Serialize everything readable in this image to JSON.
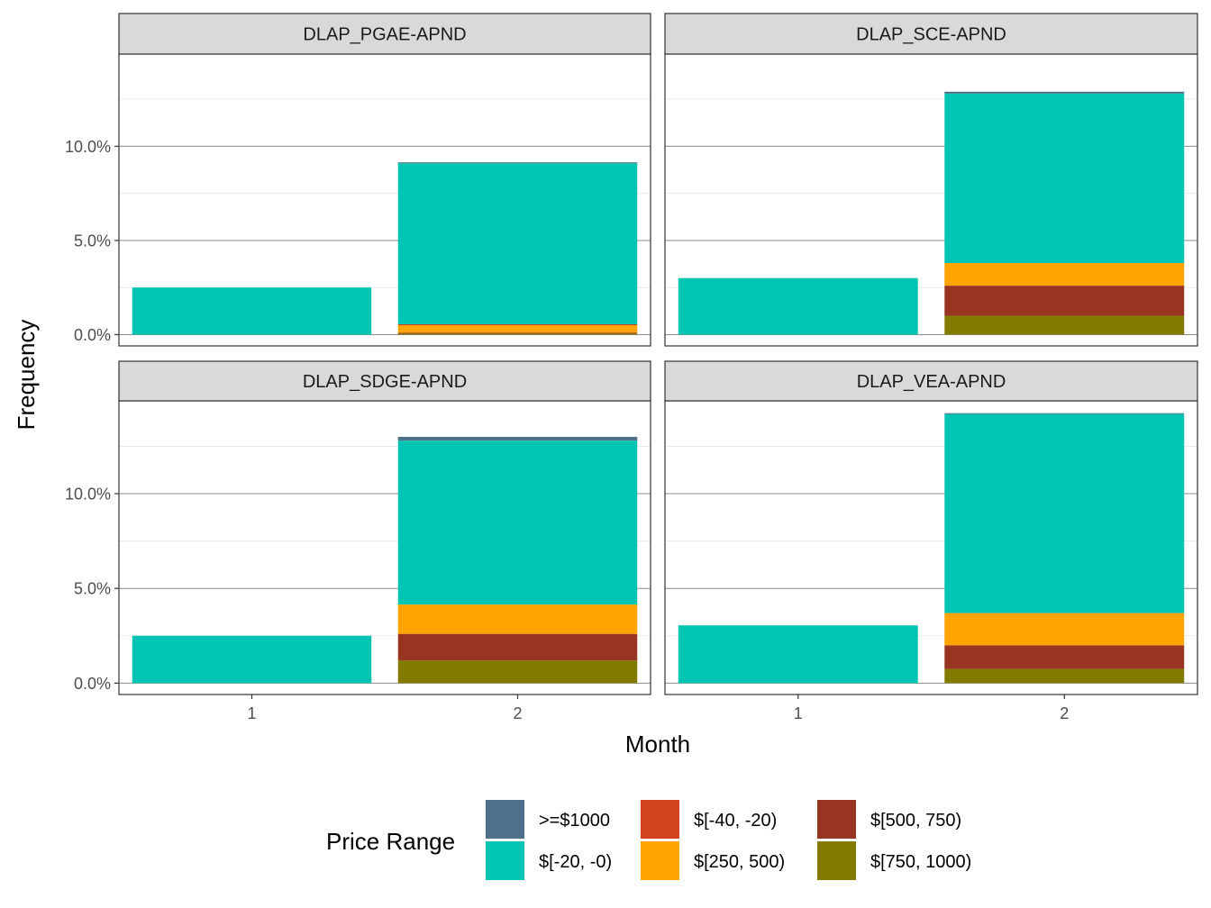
{
  "chart_data": {
    "type": "bar",
    "stacked": true,
    "xlabel": "Month",
    "ylabel": "Frequency",
    "x_categories": [
      "1",
      "2"
    ],
    "y_ticks": [
      "0.0%",
      "5.0%",
      "10.0%"
    ],
    "y_tick_values": [
      0,
      5,
      10
    ],
    "ylim": [
      -0.6,
      14.9
    ],
    "grid": true,
    "legend": {
      "title": "Price Range",
      "position": "bottom",
      "items": [
        {
          "label": ">=$1000",
          "color": "#4e7189"
        },
        {
          "label": "$[-20, -0)",
          "color": "#00c5b2"
        },
        {
          "label": "$[-40, -20)",
          "color": "#d1431f"
        },
        {
          "label": "$[250, 500)",
          "color": "#ffa400"
        },
        {
          "label": "$[500, 750)",
          "color": "#973522"
        },
        {
          "label": "$[750, 1000)",
          "color": "#837b00"
        }
      ]
    },
    "stack_order_bottom_to_top": [
      "$[750, 1000)",
      "$[500, 750)",
      "$[250, 500)",
      "$[-40, -20)",
      "$[-20, -0)",
      ">=$1000"
    ],
    "panels": [
      {
        "name": "DLAP_PGAE-APND",
        "bars": [
          {
            "month": "1",
            "segments": {
              "$[-20, -0)": 2.5
            }
          },
          {
            "month": "2",
            "segments": {
              "$[750, 1000)": 0.05,
              "$[500, 750)": 0.05,
              "$[250, 500)": 0.4,
              "$[-40, -20)": 0.05,
              "$[-20, -0)": 8.55,
              ">=$1000": 0.05
            }
          }
        ]
      },
      {
        "name": "DLAP_SCE-APND",
        "bars": [
          {
            "month": "1",
            "segments": {
              "$[-20, -0)": 3.0
            }
          },
          {
            "month": "2",
            "segments": {
              "$[750, 1000)": 1.0,
              "$[500, 750)": 1.6,
              "$[250, 500)": 1.2,
              "$[-20, -0)": 9.0,
              ">=$1000": 0.1
            }
          }
        ]
      },
      {
        "name": "DLAP_SDGE-APND",
        "bars": [
          {
            "month": "1",
            "segments": {
              "$[-20, -0)": 2.5
            }
          },
          {
            "month": "2",
            "segments": {
              "$[750, 1000)": 1.2,
              "$[500, 750)": 1.4,
              "$[250, 500)": 1.55,
              "$[-20, -0)": 8.65,
              ">=$1000": 0.2
            }
          }
        ]
      },
      {
        "name": "DLAP_VEA-APND",
        "bars": [
          {
            "month": "1",
            "segments": {
              "$[-20, -0)": 3.05
            }
          },
          {
            "month": "2",
            "segments": {
              "$[750, 1000)": 0.75,
              "$[500, 750)": 1.25,
              "$[250, 500)": 1.7,
              "$[-20, -0)": 10.5,
              ">=$1000": 0.05
            }
          }
        ]
      }
    ]
  }
}
